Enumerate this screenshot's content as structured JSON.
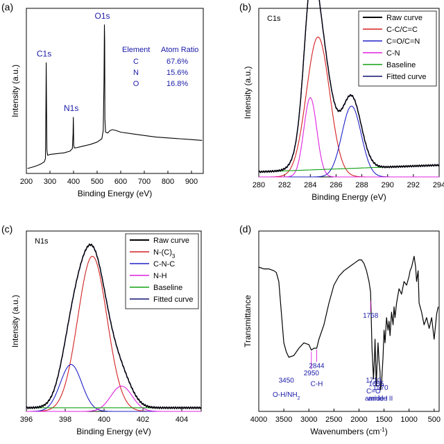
{
  "chart_data": [
    {
      "panel_label": "(a)",
      "type": "line",
      "xlabel": "Binding Energy (eV)",
      "ylabel": "Intensity (a.u.)",
      "xlim": [
        200,
        950
      ],
      "ylim": [
        0,
        100
      ],
      "x_ticks": [
        "200",
        "300",
        "400",
        "500",
        "600",
        "700",
        "800",
        "900"
      ],
      "peak_labels": [
        "C1s",
        "N1s",
        "O1s"
      ],
      "table": {
        "headers": [
          "Element",
          "Atom Ratio"
        ],
        "rows": [
          [
            "C",
            "67.6%"
          ],
          [
            "N",
            "15.6%"
          ],
          [
            "O",
            "16.8%"
          ]
        ]
      },
      "series": [
        {
          "name": "",
          "color": "#000000",
          "x": [
            205,
            230,
            250,
            265,
            276,
            281,
            283,
            284,
            285,
            287,
            290,
            300,
            330,
            360,
            385,
            395,
            398,
            399,
            400,
            401,
            403,
            410,
            440,
            470,
            500,
            520,
            526,
            529,
            531,
            532,
            533,
            536,
            545,
            555,
            565,
            580,
            600,
            650,
            700,
            750,
            800,
            850,
            900,
            945
          ],
          "y": [
            3,
            4,
            5,
            6,
            7,
            9,
            40,
            67,
            50,
            14,
            11,
            11.5,
            12,
            12.5,
            13.5,
            15,
            24,
            34,
            26,
            17,
            15.5,
            15.5,
            16.5,
            17.5,
            19,
            21,
            26,
            55,
            90,
            80,
            33,
            25,
            24.5,
            26,
            26.5,
            26,
            25,
            24,
            23,
            22,
            21.5,
            21,
            20.5,
            20
          ]
        }
      ]
    },
    {
      "panel_label": "(b)",
      "type": "line",
      "title": "C1s",
      "xlabel": "Binding Energy (eV)",
      "ylabel": "Intensity (a.u.)",
      "xlim": [
        280,
        294
      ],
      "ylim": [
        0,
        100
      ],
      "x_ticks": [
        "280",
        "282",
        "284",
        "286",
        "288",
        "290",
        "292",
        "294"
      ],
      "legend_position": "top-right",
      "legend": [
        "Raw curve",
        "C-C/C=C",
        "C=O/C=N",
        "C-N",
        "Baseline",
        "Fitted curve"
      ],
      "components": [
        {
          "name": "C-C/C=C",
          "color": "#d42020",
          "center": 284.6,
          "height": 83,
          "sigma": 0.9
        },
        {
          "name": "C=O/C=N",
          "color": "#2020c8",
          "center": 287.2,
          "height": 42,
          "sigma": 0.75
        },
        {
          "name": "C-N",
          "color": "#e020e0",
          "center": 284.0,
          "height": 47,
          "sigma": 0.5
        }
      ],
      "baseline": {
        "name": "Baseline",
        "color": "#10a010",
        "y_start": 3,
        "y_end": 7
      },
      "raw_color": "#000000",
      "fit_color": "#101070"
    },
    {
      "panel_label": "(c)",
      "type": "line",
      "title": "N1s",
      "xlabel": "Binding Energy (eV)",
      "ylabel": "Intensity (a.u.)",
      "xlim": [
        396,
        405
      ],
      "ylim": [
        0,
        100
      ],
      "x_ticks": [
        "396",
        "398",
        "400",
        "402",
        "404"
      ],
      "legend_position": "top-right",
      "legend": [
        "Raw curve",
        "N-(C)",
        "C-N-C",
        "N-H",
        "Baseline",
        "Fitted curve"
      ],
      "legend_subscript": {
        "1": "3"
      },
      "components": [
        {
          "name": "N-(C)3",
          "color": "#d42020",
          "center": 399.4,
          "height": 86,
          "sigma": 0.75
        },
        {
          "name": "C-N-C",
          "color": "#2020c8",
          "center": 398.3,
          "height": 26,
          "sigma": 0.55
        },
        {
          "name": "N-H",
          "color": "#e020e0",
          "center": 400.9,
          "height": 14,
          "sigma": 0.55
        }
      ],
      "baseline": {
        "name": "Baseline",
        "color": "#10a010",
        "y_start": 2,
        "y_end": 2
      },
      "raw_color": "#000000",
      "fit_color": "#101070"
    },
    {
      "panel_label": "(d)",
      "type": "line",
      "xlabel": "Wavenumbers (cm",
      "xlabel_sup": "-1",
      "xlabel_end": ")",
      "ylabel": "Transmittance",
      "xlim": [
        4000,
        400
      ],
      "ylim": [
        0,
        100
      ],
      "x_ticks": [
        "4000",
        "3500",
        "3000",
        "2500",
        "2000",
        "1500",
        "1000",
        "500"
      ],
      "annotations": [
        {
          "text": "3450",
          "x": 3450,
          "y": 16
        },
        {
          "text": "O-H/NH",
          "sub": "2",
          "x": 3450,
          "y": 8
        },
        {
          "text": "2950",
          "x": 2950,
          "y": 20
        },
        {
          "text": "2844",
          "x": 2844,
          "y": 24
        },
        {
          "text": "C-H",
          "x": 2844,
          "y": 14
        },
        {
          "text": "1768",
          "x": 1768,
          "y": 52
        },
        {
          "text": "1710",
          "x": 1710,
          "y": 16
        },
        {
          "text": "C=O",
          "x": 1710,
          "y": 10
        },
        {
          "text": "1655",
          "x": 1655,
          "y": 14
        },
        {
          "text": "amide I",
          "x": 1655,
          "y": 6
        },
        {
          "text": "1570",
          "x": 1570,
          "y": 12
        },
        {
          "text": "amide II",
          "x": 1570,
          "y": 6
        }
      ],
      "series": [
        {
          "name": "",
          "color": "#000000",
          "x": [
            4000,
            3900,
            3800,
            3700,
            3650,
            3600,
            3550,
            3500,
            3450,
            3400,
            3300,
            3200,
            3100,
            3000,
            2950,
            2900,
            2844,
            2800,
            2700,
            2600,
            2500,
            2400,
            2300,
            2200,
            2100,
            2000,
            1950,
            1900,
            1850,
            1800,
            1768,
            1740,
            1710,
            1690,
            1680,
            1655,
            1640,
            1620,
            1600,
            1580,
            1570,
            1550,
            1520,
            1500,
            1480,
            1450,
            1420,
            1400,
            1380,
            1350,
            1320,
            1300,
            1280,
            1250,
            1200,
            1150,
            1100,
            1050,
            1000,
            980,
            950,
            900,
            870,
            850,
            820,
            800,
            780,
            750,
            700,
            650,
            600,
            550,
            500,
            450,
            420
          ],
          "y": [
            80,
            79,
            79,
            78,
            77,
            72,
            55,
            38,
            33,
            30,
            31,
            35,
            38,
            37,
            34,
            35,
            35,
            40,
            48,
            60,
            70,
            75,
            78,
            80,
            82,
            84,
            84,
            82,
            78,
            72,
            66,
            35,
            18,
            30,
            40,
            14,
            25,
            38,
            28,
            22,
            12,
            15,
            30,
            45,
            38,
            52,
            45,
            50,
            42,
            55,
            48,
            58,
            52,
            60,
            68,
            65,
            72,
            70,
            75,
            78,
            80,
            86,
            80,
            72,
            78,
            60,
            58,
            55,
            48,
            52,
            46,
            52,
            40,
            54,
            58
          ]
        }
      ]
    }
  ]
}
